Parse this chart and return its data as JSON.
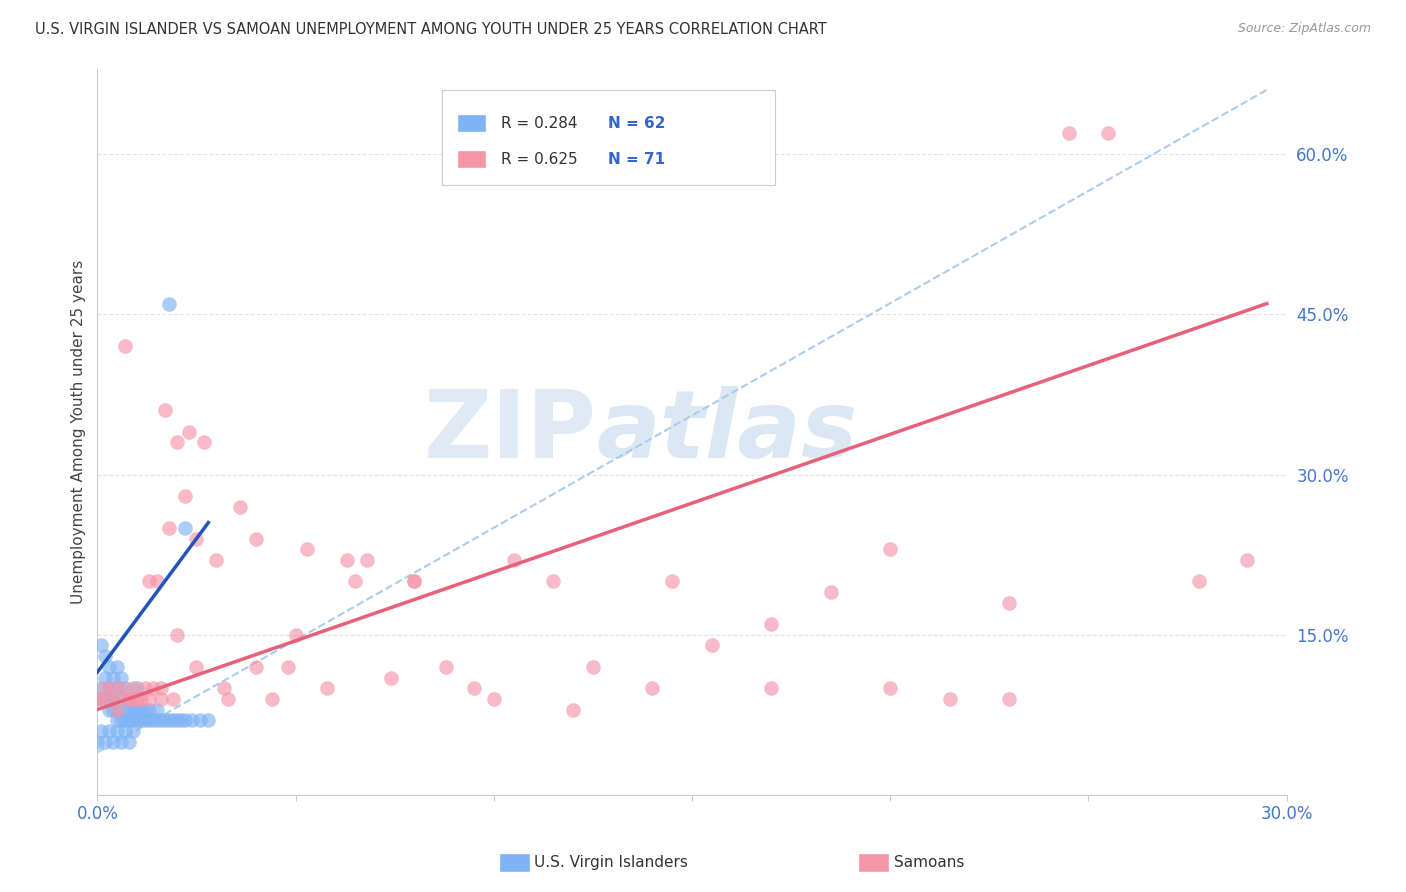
{
  "title": "U.S. VIRGIN ISLANDER VS SAMOAN UNEMPLOYMENT AMONG YOUTH UNDER 25 YEARS CORRELATION CHART",
  "source": "Source: ZipAtlas.com",
  "ylabel": "Unemployment Among Youth under 25 years",
  "xlim": [
    0.0,
    0.3
  ],
  "ylim": [
    0.0,
    0.68
  ],
  "xticks": [
    0.0,
    0.05,
    0.1,
    0.15,
    0.2,
    0.25,
    0.3
  ],
  "xticklabels": [
    "0.0%",
    "",
    "",
    "",
    "",
    "",
    "30.0%"
  ],
  "yticks": [
    0.0,
    0.15,
    0.3,
    0.45,
    0.6
  ],
  "yticklabels": [
    "",
    "15.0%",
    "30.0%",
    "45.0%",
    "60.0%"
  ],
  "blue_color": "#7EB3F5",
  "pink_color": "#F595A8",
  "blue_line_color": "#2255BB",
  "pink_line_color": "#E8607A",
  "dashed_line_color": "#AACCEE",
  "blue_scatter_x": [
    0.0,
    0.001,
    0.001,
    0.002,
    0.002,
    0.002,
    0.003,
    0.003,
    0.003,
    0.003,
    0.004,
    0.004,
    0.004,
    0.005,
    0.005,
    0.005,
    0.005,
    0.006,
    0.006,
    0.006,
    0.007,
    0.007,
    0.007,
    0.008,
    0.008,
    0.008,
    0.009,
    0.009,
    0.01,
    0.01,
    0.01,
    0.011,
    0.011,
    0.012,
    0.012,
    0.013,
    0.013,
    0.014,
    0.015,
    0.015,
    0.016,
    0.017,
    0.018,
    0.019,
    0.02,
    0.021,
    0.022,
    0.024,
    0.026,
    0.028,
    0.0,
    0.001,
    0.002,
    0.003,
    0.004,
    0.005,
    0.006,
    0.007,
    0.008,
    0.009,
    0.018,
    0.022
  ],
  "blue_scatter_y": [
    0.09,
    0.1,
    0.14,
    0.09,
    0.11,
    0.13,
    0.08,
    0.09,
    0.1,
    0.12,
    0.08,
    0.09,
    0.11,
    0.07,
    0.08,
    0.1,
    0.12,
    0.07,
    0.09,
    0.11,
    0.07,
    0.08,
    0.1,
    0.07,
    0.08,
    0.09,
    0.07,
    0.08,
    0.07,
    0.08,
    0.1,
    0.07,
    0.08,
    0.07,
    0.08,
    0.07,
    0.08,
    0.07,
    0.07,
    0.08,
    0.07,
    0.07,
    0.07,
    0.07,
    0.07,
    0.07,
    0.07,
    0.07,
    0.07,
    0.07,
    0.05,
    0.06,
    0.05,
    0.06,
    0.05,
    0.06,
    0.05,
    0.06,
    0.05,
    0.06,
    0.46,
    0.25
  ],
  "pink_scatter_x": [
    0.0,
    0.001,
    0.002,
    0.003,
    0.004,
    0.005,
    0.006,
    0.007,
    0.008,
    0.009,
    0.01,
    0.011,
    0.012,
    0.013,
    0.014,
    0.015,
    0.016,
    0.017,
    0.018,
    0.019,
    0.02,
    0.022,
    0.023,
    0.025,
    0.027,
    0.03,
    0.033,
    0.036,
    0.04,
    0.044,
    0.048,
    0.053,
    0.058,
    0.063,
    0.068,
    0.074,
    0.08,
    0.088,
    0.095,
    0.105,
    0.115,
    0.125,
    0.14,
    0.155,
    0.17,
    0.185,
    0.2,
    0.215,
    0.23,
    0.245,
    0.005,
    0.008,
    0.01,
    0.013,
    0.016,
    0.02,
    0.025,
    0.032,
    0.04,
    0.05,
    0.065,
    0.08,
    0.1,
    0.12,
    0.145,
    0.17,
    0.2,
    0.23,
    0.255,
    0.278,
    0.29
  ],
  "pink_scatter_y": [
    0.09,
    0.09,
    0.1,
    0.09,
    0.1,
    0.09,
    0.1,
    0.42,
    0.09,
    0.1,
    0.09,
    0.09,
    0.1,
    0.09,
    0.1,
    0.2,
    0.09,
    0.36,
    0.25,
    0.09,
    0.33,
    0.28,
    0.34,
    0.24,
    0.33,
    0.22,
    0.09,
    0.27,
    0.24,
    0.09,
    0.12,
    0.23,
    0.1,
    0.22,
    0.22,
    0.11,
    0.2,
    0.12,
    0.1,
    0.22,
    0.2,
    0.12,
    0.1,
    0.14,
    0.1,
    0.19,
    0.1,
    0.09,
    0.09,
    0.62,
    0.08,
    0.09,
    0.09,
    0.2,
    0.1,
    0.15,
    0.12,
    0.1,
    0.12,
    0.15,
    0.2,
    0.2,
    0.09,
    0.08,
    0.2,
    0.16,
    0.23,
    0.18,
    0.62,
    0.2,
    0.22
  ],
  "blue_line_x": [
    0.0,
    0.028
  ],
  "blue_line_y": [
    0.115,
    0.255
  ],
  "pink_line_x": [
    0.0,
    0.295
  ],
  "pink_line_y": [
    0.08,
    0.46
  ],
  "dash_line_x": [
    0.0,
    0.295
  ],
  "dash_line_y": [
    0.04,
    0.66
  ],
  "watermark_zip": "ZIP",
  "watermark_atlas": "atlas"
}
